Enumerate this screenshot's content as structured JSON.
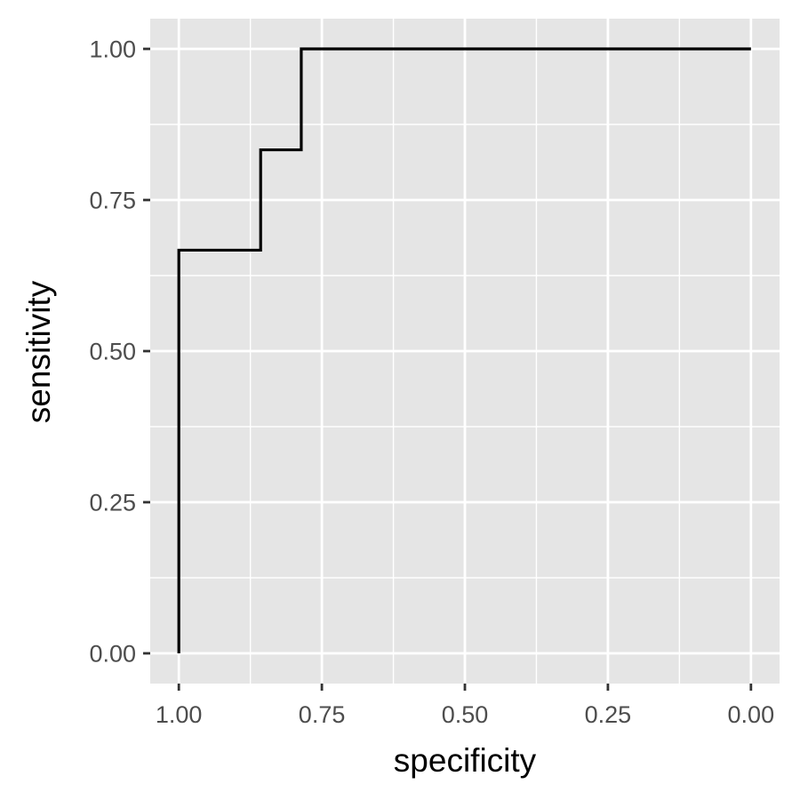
{
  "chart_data": {
    "type": "line",
    "title": "",
    "xlabel": "specificity",
    "ylabel": "sensitivity",
    "x_reversed": true,
    "xlim": [
      1.05,
      -0.05
    ],
    "ylim": [
      -0.05,
      1.05
    ],
    "x_major_ticks": [
      1.0,
      0.75,
      0.5,
      0.25,
      0.0
    ],
    "x_tick_labels": [
      "1.00",
      "0.75",
      "0.50",
      "0.25",
      "0.00"
    ],
    "x_minor_ticks": [
      0.875,
      0.625,
      0.375,
      0.125
    ],
    "y_major_ticks": [
      0.0,
      0.25,
      0.5,
      0.75,
      1.0
    ],
    "y_tick_labels": [
      "0.00",
      "0.25",
      "0.50",
      "0.75",
      "1.00"
    ],
    "y_minor_ticks": [
      0.125,
      0.375,
      0.625,
      0.875
    ],
    "grid": true,
    "legend": "none",
    "colors": {
      "panel_background": "#e5e5e5",
      "grid": "#ffffff",
      "line": "#000000",
      "tick_text": "#4d4d4d"
    },
    "series": [
      {
        "step": true,
        "points": [
          {
            "x": 1.0,
            "y": 0.0
          },
          {
            "x": 1.0,
            "y": 0.667
          },
          {
            "x": 0.857,
            "y": 0.667
          },
          {
            "x": 0.857,
            "y": 0.833
          },
          {
            "x": 0.786,
            "y": 0.833
          },
          {
            "x": 0.786,
            "y": 1.0
          },
          {
            "x": 0.0,
            "y": 1.0
          }
        ]
      }
    ]
  }
}
